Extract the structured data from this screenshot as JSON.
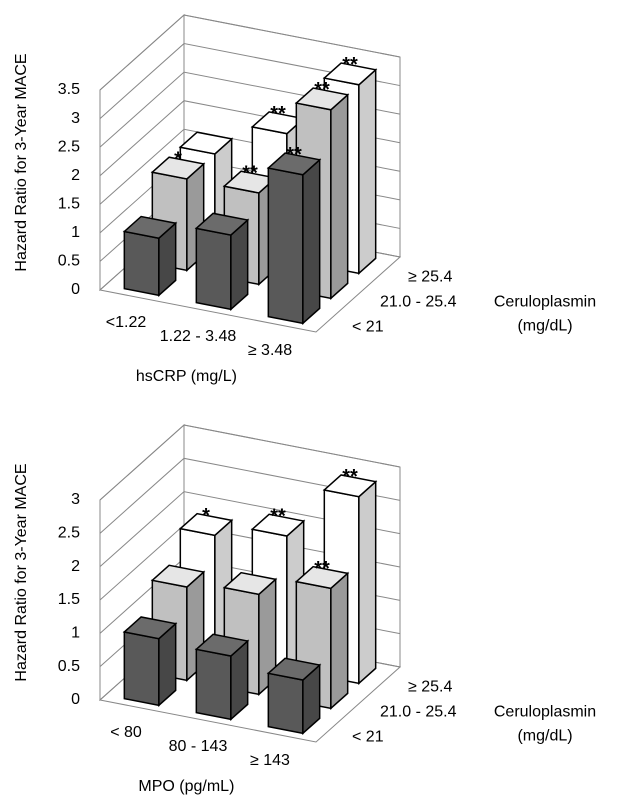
{
  "chart_data": [
    {
      "type": "bar3d",
      "y_axis_label": "Hazard Ratio for 3-Year MACE",
      "x_axis_label": "hsCRP (mg/L)",
      "series_axis_label": [
        "Ceruloplasmin",
        "(mg/dL)"
      ],
      "categories": [
        "<1.22",
        "1.22 - 3.48",
        "≥ 3.48"
      ],
      "ylim": [
        0,
        3.5
      ],
      "yticks": [
        0,
        0.5,
        1,
        1.5,
        2,
        2.5,
        3,
        3.5
      ],
      "grid": true,
      "series": [
        {
          "name": "< 21",
          "color": "#595959",
          "values": [
            1.0,
            1.3,
            2.6
          ],
          "annotations": [
            null,
            null,
            "**"
          ]
        },
        {
          "name": "21.0 - 25.4",
          "color": "#c0c0c0",
          "values": [
            1.6,
            1.6,
            3.3
          ],
          "annotations": [
            "*",
            "**",
            "**"
          ]
        },
        {
          "name": "≥ 25.4",
          "color": "#ffffff",
          "values": [
            1.6,
            2.2,
            3.3
          ],
          "annotations": [
            null,
            "**",
            "**"
          ]
        }
      ]
    },
    {
      "type": "bar3d",
      "y_axis_label": "Hazard Ratio for 3-Year MACE",
      "x_axis_label": "MPO (pg/mL)",
      "series_axis_label": [
        "Ceruloplasmin",
        "(mg/dL)"
      ],
      "categories": [
        "< 80",
        "80 - 143",
        "≥ 143"
      ],
      "ylim": [
        0,
        3
      ],
      "yticks": [
        0,
        0.5,
        1,
        1.5,
        2,
        2.5,
        3
      ],
      "grid": true,
      "series": [
        {
          "name": "< 21",
          "color": "#595959",
          "values": [
            1.0,
            0.95,
            0.8
          ],
          "annotations": [
            null,
            null,
            null
          ]
        },
        {
          "name": "21.0 - 25.4",
          "color": "#c0c0c0",
          "values": [
            1.4,
            1.5,
            1.8
          ],
          "annotations": [
            null,
            null,
            "**"
          ]
        },
        {
          "name": "≥ 25.4",
          "color": "#ffffff",
          "values": [
            1.8,
            2.0,
            2.8
          ],
          "annotations": [
            "*",
            "**",
            "**"
          ]
        }
      ]
    }
  ]
}
